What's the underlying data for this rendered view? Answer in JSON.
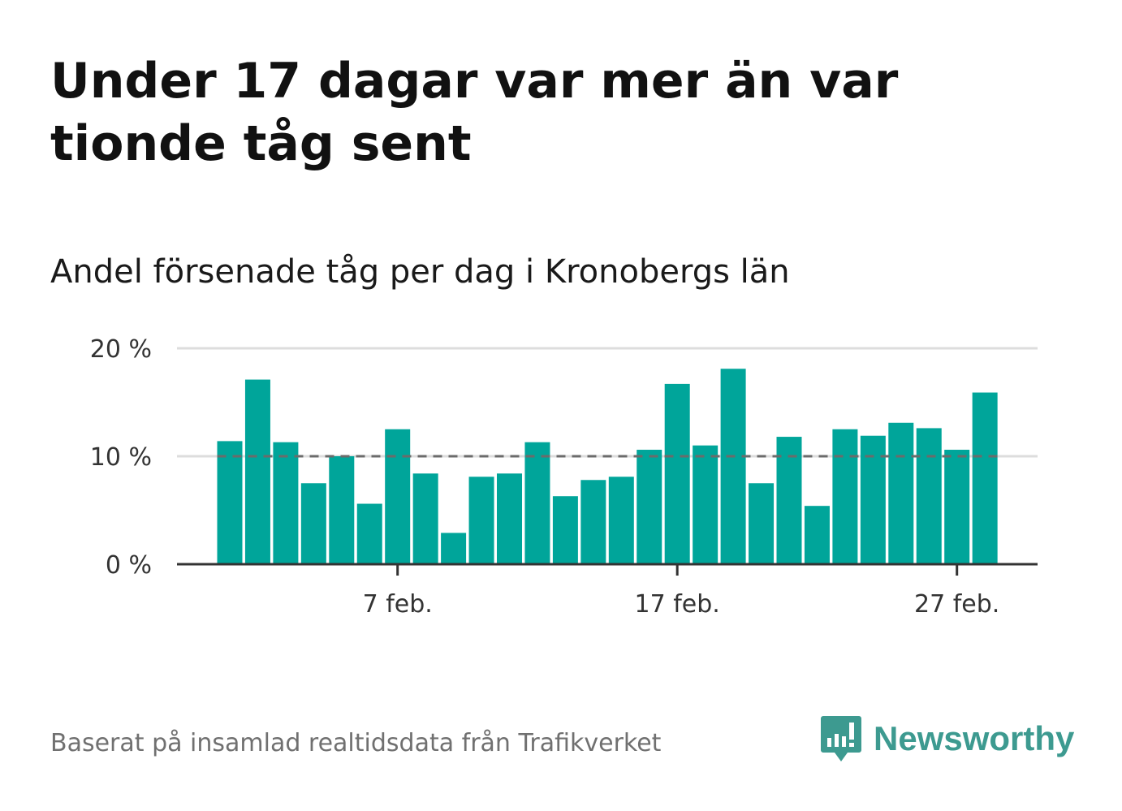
{
  "headline": "Under 17 dagar var mer än var tionde tåg sent",
  "subtitle": "Andel försenade tåg per dag i Kronobergs län",
  "source": "Baserat på insamlad realtidsdata från Trafikverket",
  "brand": {
    "name": "Newsworthy",
    "icon": "newsworthy-logo-icon",
    "color": "#3d9a90"
  },
  "chart_data": {
    "type": "bar",
    "x": [
      "2023-02-01",
      "2023-02-02",
      "2023-02-03",
      "2023-02-04",
      "2023-02-05",
      "2023-02-06",
      "2023-02-07",
      "2023-02-08",
      "2023-02-09",
      "2023-02-10",
      "2023-02-11",
      "2023-02-12",
      "2023-02-13",
      "2023-02-14",
      "2023-02-15",
      "2023-02-16",
      "2023-02-17",
      "2023-02-18",
      "2023-02-19",
      "2023-02-20",
      "2023-02-21",
      "2023-02-22",
      "2023-02-23",
      "2023-02-24",
      "2023-02-25",
      "2023-02-26",
      "2023-02-27",
      "2023-02-28"
    ],
    "values": [
      11.4,
      17.1,
      11.3,
      7.5,
      10.0,
      5.6,
      12.5,
      8.4,
      2.9,
      8.1,
      8.4,
      11.3,
      6.3,
      7.8,
      8.1,
      10.6,
      16.7,
      11.0,
      18.1,
      7.5,
      11.8,
      5.4,
      12.5,
      11.9,
      13.1,
      12.6,
      10.6,
      15.9
    ],
    "x_tick_labels": [
      {
        "index": 6,
        "label": "7 feb."
      },
      {
        "index": 16,
        "label": "17 feb."
      },
      {
        "index": 26,
        "label": "27 feb."
      }
    ],
    "y_ticks": [
      0,
      10,
      20
    ],
    "y_tick_labels": [
      "0 %",
      "10 %",
      "20 %"
    ],
    "ylim": [
      0,
      20
    ],
    "reference_line": {
      "value": 10,
      "style": "dashed",
      "color": "#6b6b6b"
    },
    "bar_color": "#00a59a",
    "grid": true,
    "title": "Andel försenade tåg per dag i Kronobergs län",
    "xlabel": "",
    "ylabel": ""
  }
}
